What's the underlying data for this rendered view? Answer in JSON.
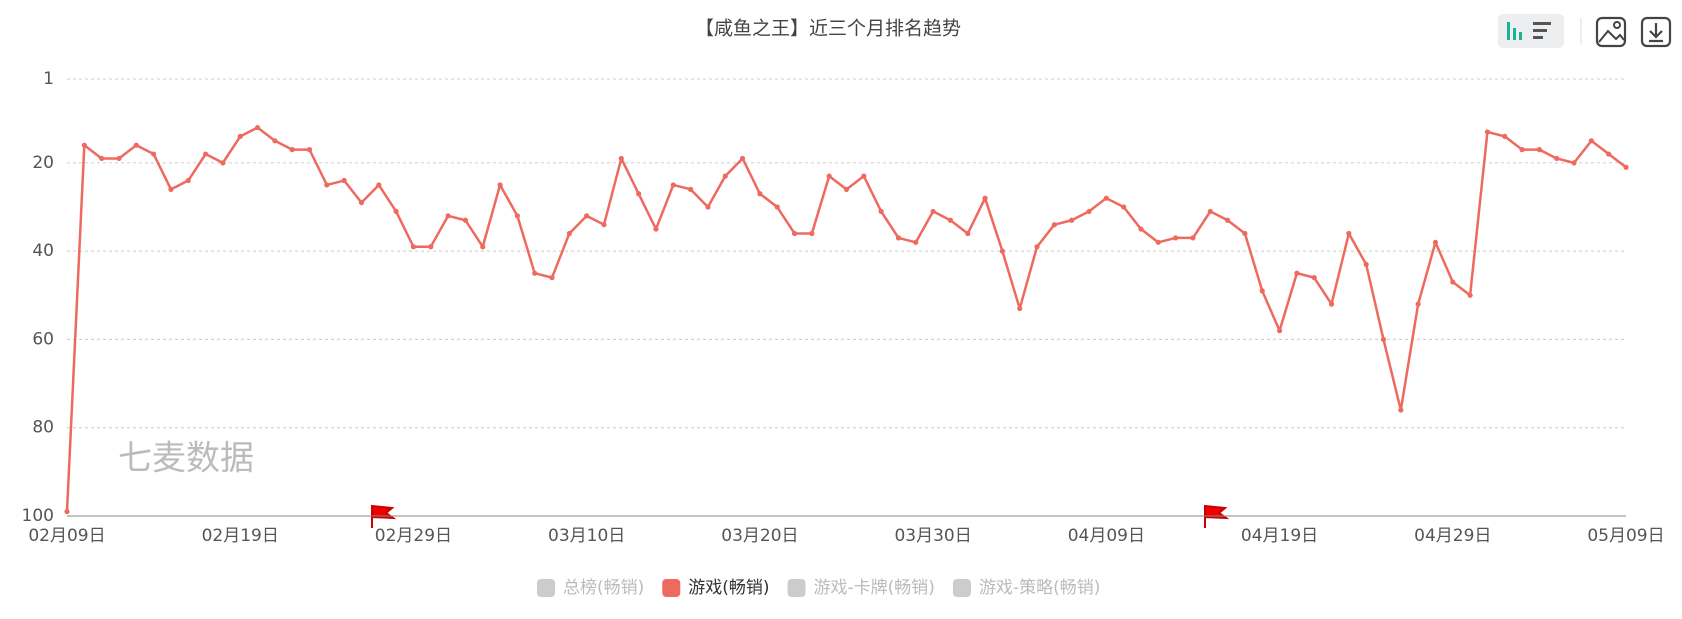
{
  "chart_data": {
    "type": "line",
    "title": "【咸鱼之王】近三个月排名趋势",
    "watermark": "七麦数据",
    "categories": [
      "02月09日",
      null,
      null,
      null,
      null,
      null,
      null,
      null,
      null,
      null,
      "02月19日",
      null,
      null,
      null,
      null,
      null,
      null,
      null,
      null,
      null,
      "02月29日",
      null,
      null,
      null,
      null,
      null,
      null,
      null,
      null,
      null,
      "03月10日",
      null,
      null,
      null,
      null,
      null,
      null,
      null,
      null,
      null,
      "03月20日",
      null,
      null,
      null,
      null,
      null,
      null,
      null,
      null,
      null,
      "03月30日",
      null,
      null,
      null,
      null,
      null,
      null,
      null,
      null,
      null,
      "04月09日",
      null,
      null,
      null,
      null,
      null,
      null,
      null,
      null,
      null,
      "04月19日",
      null,
      null,
      null,
      null,
      null,
      null,
      null,
      null,
      null,
      "04月29日",
      null,
      null,
      null,
      null,
      null,
      null,
      null,
      null,
      null,
      "05月09日"
    ],
    "series": [
      {
        "name": "游戏(畅销)",
        "color": "#ee6a5f",
        "values": [
          99,
          16,
          19,
          19,
          16,
          18,
          26,
          24,
          18,
          20,
          14,
          12,
          15,
          17,
          17,
          25,
          24,
          29,
          25,
          31,
          39,
          39,
          32,
          33,
          39,
          25,
          32,
          45,
          46,
          36,
          32,
          34,
          19,
          27,
          35,
          25,
          26,
          30,
          23,
          19,
          27,
          30,
          36,
          36,
          23,
          26,
          23,
          31,
          37,
          38,
          31,
          33,
          36,
          28,
          40,
          53,
          39,
          34,
          33,
          31,
          28,
          30,
          35,
          38,
          37,
          37,
          31,
          33,
          36,
          49,
          58,
          45,
          46,
          52,
          36,
          43,
          60,
          76,
          52,
          38,
          47,
          50,
          13,
          14,
          17,
          17,
          19,
          20,
          15,
          18,
          21
        ]
      }
    ],
    "hidden_series": [
      {
        "name": "总榜(畅销)",
        "color": "#cccccc"
      },
      {
        "name": "游戏-卡牌(畅销)",
        "color": "#cccccc"
      },
      {
        "name": "游戏-策略(畅销)",
        "color": "#cccccc"
      }
    ],
    "ylim": [
      100,
      1
    ],
    "yticks": [
      1,
      20,
      40,
      60,
      80,
      100
    ],
    "grid": true
  }
}
